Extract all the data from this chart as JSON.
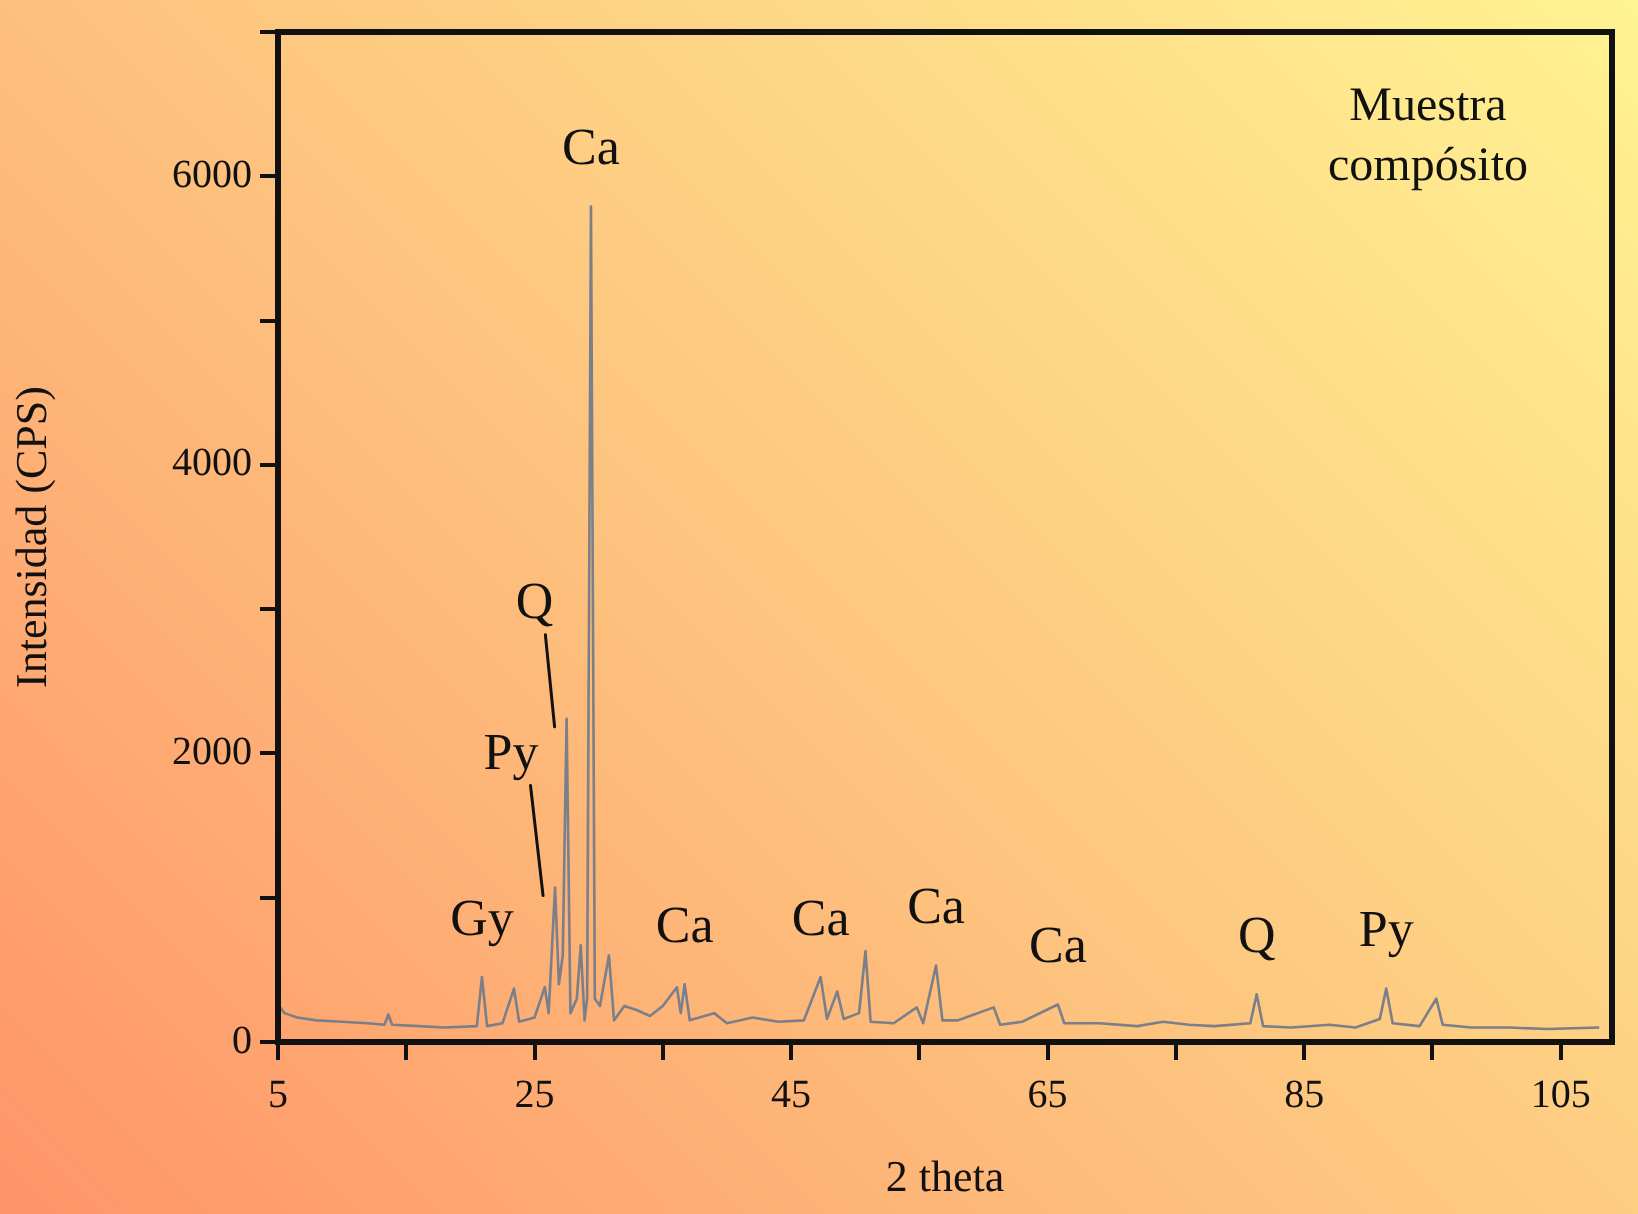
{
  "chart_data": {
    "type": "line",
    "xlabel": "2 theta",
    "ylabel": "Intensidad (CPS)",
    "x": [
      5,
      5.5,
      6.5,
      8,
      10,
      12,
      13.3,
      13.6,
      13.9,
      16,
      18,
      20.5,
      20.9,
      21.3,
      22.5,
      23.4,
      23.8,
      25,
      25.8,
      26.1,
      26.6,
      26.9,
      27.2,
      27.5,
      27.8,
      28.3,
      28.6,
      28.9,
      29.1,
      29.4,
      29.7,
      30.1,
      30.8,
      31.2,
      32,
      33,
      34,
      35,
      36.1,
      36.4,
      36.7,
      37.1,
      39,
      40,
      42,
      44,
      46,
      47.3,
      47.8,
      48.6,
      49.1,
      50.3,
      50.8,
      51.2,
      53,
      54.8,
      55.3,
      56.3,
      56.8,
      58,
      60.8,
      61.3,
      63,
      65.8,
      66.3,
      69,
      72,
      74,
      76,
      78,
      80.8,
      81.3,
      81.8,
      84,
      87,
      89,
      90.9,
      91.4,
      91.9,
      94,
      95.3,
      95.8,
      98,
      101,
      104,
      108
    ],
    "series": [
      {
        "color": "#7a7f8a",
        "values": [
          260,
          200,
          170,
          150,
          140,
          130,
          120,
          190,
          120,
          110,
          100,
          110,
          450,
          110,
          130,
          370,
          140,
          170,
          380,
          200,
          1070,
          400,
          600,
          2240,
          200,
          300,
          670,
          150,
          300,
          5790,
          300,
          250,
          600,
          150,
          250,
          220,
          180,
          250,
          380,
          200,
          400,
          150,
          200,
          130,
          170,
          140,
          150,
          450,
          160,
          350,
          160,
          200,
          630,
          140,
          130,
          240,
          130,
          530,
          150,
          150,
          240,
          120,
          140,
          260,
          130,
          130,
          110,
          140,
          120,
          110,
          130,
          330,
          110,
          100,
          120,
          100,
          160,
          370,
          130,
          110,
          300,
          120,
          100,
          100,
          90,
          100
        ]
      }
    ],
    "xlim": [
      5,
      109
    ],
    "ylim": [
      0,
      7000
    ],
    "xticks": [
      5,
      {
        "value": 15,
        "label": null
      },
      25,
      {
        "value": 35,
        "label": null
      },
      45,
      {
        "value": 55,
        "label": null
      },
      65,
      {
        "value": 75,
        "label": null
      },
      85,
      {
        "value": 95,
        "label": null
      },
      105
    ],
    "yticks": [
      0,
      {
        "value": 1000,
        "label": null
      },
      2000,
      {
        "value": 3000,
        "label": null
      },
      4000,
      {
        "value": 5000,
        "label": null
      },
      6000,
      {
        "value": 7000,
        "label": null
      }
    ],
    "grid": false,
    "legend": false,
    "marker": "none",
    "line_style": "solid",
    "annotations": [
      "Muestra compósito",
      {
        "text": "Ca",
        "x": 29.4,
        "y": 5790
      },
      {
        "text": "Q",
        "x": 27.5,
        "y": 2240
      },
      {
        "text": "Py",
        "x": 26.6,
        "y": 1070
      },
      {
        "text": "Gy",
        "x": 20.9,
        "y": 450
      },
      {
        "text": "Ca",
        "x": 36.7,
        "y": 400
      },
      {
        "text": "Ca",
        "x": 47.3,
        "y": 450
      },
      {
        "text": "Ca",
        "x": 56.3,
        "y": 530
      },
      {
        "text": "Ca",
        "x": 65.8,
        "y": 260
      },
      {
        "text": "Q",
        "x": 81.3,
        "y": 330
      },
      {
        "text": "Py",
        "x": 91.4,
        "y": 370
      }
    ]
  }
}
